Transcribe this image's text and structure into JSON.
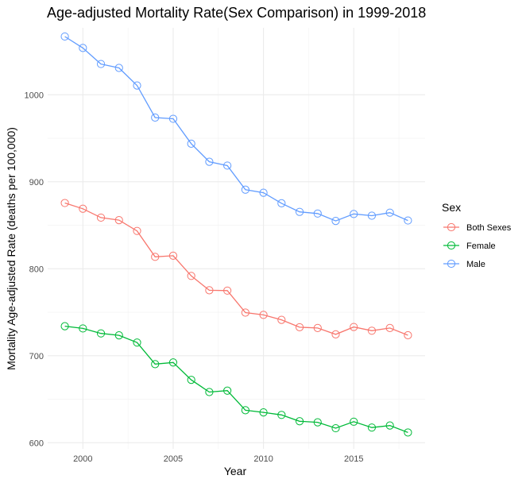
{
  "chart_data": {
    "type": "line",
    "title": "Age-adjusted Mortality Rate(Sex Comparison) in 1999-2018",
    "xlabel": "Year",
    "ylabel": "Mortality Age-adjusted Rate (deaths per 100,000)",
    "x": [
      1999,
      2000,
      2001,
      2002,
      2003,
      2004,
      2005,
      2006,
      2007,
      2008,
      2009,
      2010,
      2011,
      2012,
      2013,
      2014,
      2015,
      2016,
      2017,
      2018
    ],
    "xlim": [
      1998.05,
      2018.95
    ],
    "ylim": [
      593,
      1077
    ],
    "x_ticks": [
      "2000",
      "2005",
      "2010",
      "2015"
    ],
    "y_ticks": [
      "600",
      "700",
      "800",
      "900",
      "1000"
    ],
    "grid": true,
    "legend": {
      "title": "Sex",
      "position": "right"
    },
    "series": [
      {
        "name": "Both Sexes",
        "color": "#F8766D",
        "values": [
          875.6,
          869.0,
          858.8,
          855.9,
          843.5,
          813.7,
          815.0,
          791.8,
          775.3,
          774.9,
          749.6,
          747.0,
          741.3,
          732.8,
          731.9,
          724.6,
          733.1,
          728.8,
          731.9,
          723.6
        ]
      },
      {
        "name": "Female",
        "color": "#00BA38",
        "values": [
          734.0,
          731.4,
          725.7,
          723.5,
          715.2,
          690.4,
          692.3,
          672.3,
          658.3,
          659.9,
          637.4,
          634.9,
          632.0,
          624.7,
          623.5,
          616.7,
          624.2,
          617.5,
          619.8,
          611.8
        ]
      },
      {
        "name": "Male",
        "color": "#619CFF",
        "values": [
          1067.0,
          1053.8,
          1035.4,
          1030.9,
          1010.7,
          973.8,
          972.4,
          943.8,
          923.0,
          918.6,
          890.9,
          887.4,
          875.3,
          865.4,
          863.5,
          855.0,
          863.0,
          861.0,
          864.5,
          855.5
        ]
      }
    ]
  }
}
